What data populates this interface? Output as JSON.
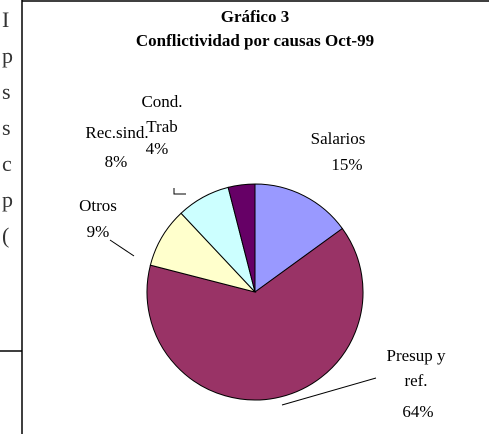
{
  "document_fragments": [
    "I",
    "p",
    "s",
    "s",
    "c",
    "p",
    "("
  ],
  "chart_data": {
    "type": "pie",
    "title": "Gráfico 3",
    "subtitle": "Conflictividad por causas Oct-99",
    "categories": [
      "Salarios",
      "Presup y ref.",
      "Otros",
      "Rec.sind.",
      "Cond. Trab"
    ],
    "values": [
      15,
      64,
      9,
      8,
      4
    ],
    "value_labels": [
      "15%",
      "64%",
      "9%",
      "8%",
      "4%"
    ],
    "colors": [
      "#9999ff",
      "#993366",
      "#ffffcc",
      "#ccffff",
      "#660066"
    ]
  }
}
